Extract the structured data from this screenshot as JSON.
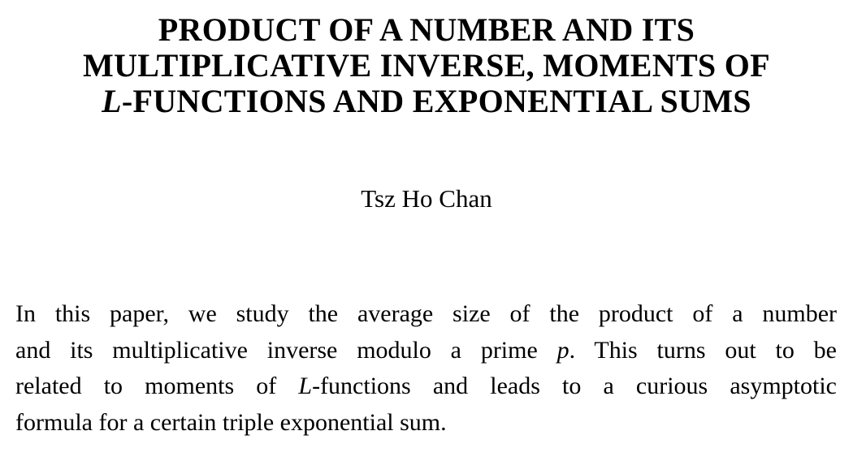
{
  "page": {
    "background_color": "#ffffff",
    "text_color": "#000000"
  },
  "paper": {
    "title": {
      "lines": [
        {
          "segments": [
            {
              "text": "PRODUCT OF A NUMBER AND ITS"
            }
          ]
        },
        {
          "segments": [
            {
              "text": "MULTIPLICATIVE INVERSE, MOMENTS OF"
            }
          ]
        },
        {
          "segments": [
            {
              "text": "L",
              "italic": true
            },
            {
              "text": "-FUNCTIONS AND EXPONENTIAL SUMS"
            }
          ]
        }
      ]
    },
    "author": "Tsz Ho Chan",
    "abstract": {
      "lines": [
        {
          "segments": [
            {
              "text": "In this paper, we study the average size of the product of a number"
            }
          ]
        },
        {
          "segments": [
            {
              "text": "and its multiplicative inverse modulo a prime "
            },
            {
              "text": "p",
              "italic": true
            },
            {
              "text": ". This turns out to be"
            }
          ]
        },
        {
          "segments": [
            {
              "text": "related to moments of "
            },
            {
              "text": "L",
              "italic": true
            },
            {
              "text": "-functions and leads to a curious asymptotic"
            }
          ]
        },
        {
          "segments": [
            {
              "text": "formula for a certain triple exponential sum."
            }
          ]
        }
      ]
    }
  }
}
